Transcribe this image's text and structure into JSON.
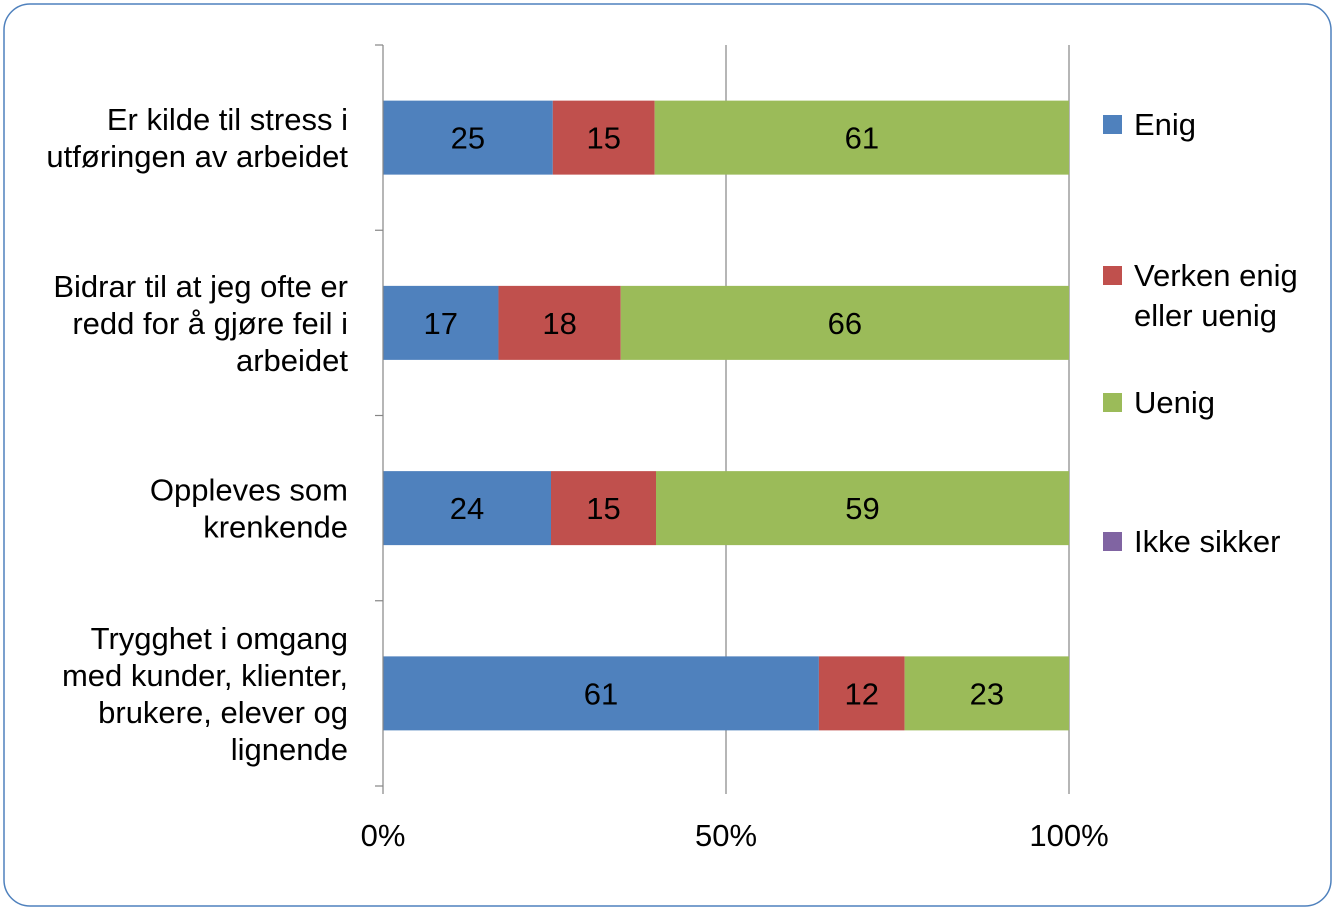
{
  "chart_data": {
    "type": "bar",
    "orientation": "horizontal",
    "stacked": "percent",
    "categories": [
      [
        "Er kilde til stress i",
        "utføringen av arbeidet"
      ],
      [
        "Bidrar til at jeg ofte er",
        "redd for å gjøre feil i",
        "arbeidet"
      ],
      [
        "Oppleves som",
        "krenkende"
      ],
      [
        "Trygghet i omgang",
        "med kunder, klienter,",
        "brukere, elever og",
        "lignende"
      ]
    ],
    "series": [
      {
        "name": "Enig",
        "values": [
          25,
          17,
          24,
          61
        ],
        "color": "#4f81bd"
      },
      {
        "name": "Verken enig eller uenig",
        "legend_lines": [
          "Verken enig",
          "eller uenig"
        ],
        "values": [
          15,
          18,
          15,
          12
        ],
        "color": "#c0504d"
      },
      {
        "name": "Uenig",
        "values": [
          61,
          66,
          59,
          23
        ],
        "color": "#9bbb59"
      },
      {
        "name": "Ikke sikker",
        "values": [
          0,
          0,
          0,
          0
        ],
        "color": "#8064a2"
      }
    ],
    "x_ticks": [
      "0%",
      "50%",
      "100%"
    ],
    "xlim": [
      0,
      100
    ],
    "grid": true,
    "legend_position": "right",
    "title": "",
    "xlabel": "",
    "ylabel": ""
  }
}
